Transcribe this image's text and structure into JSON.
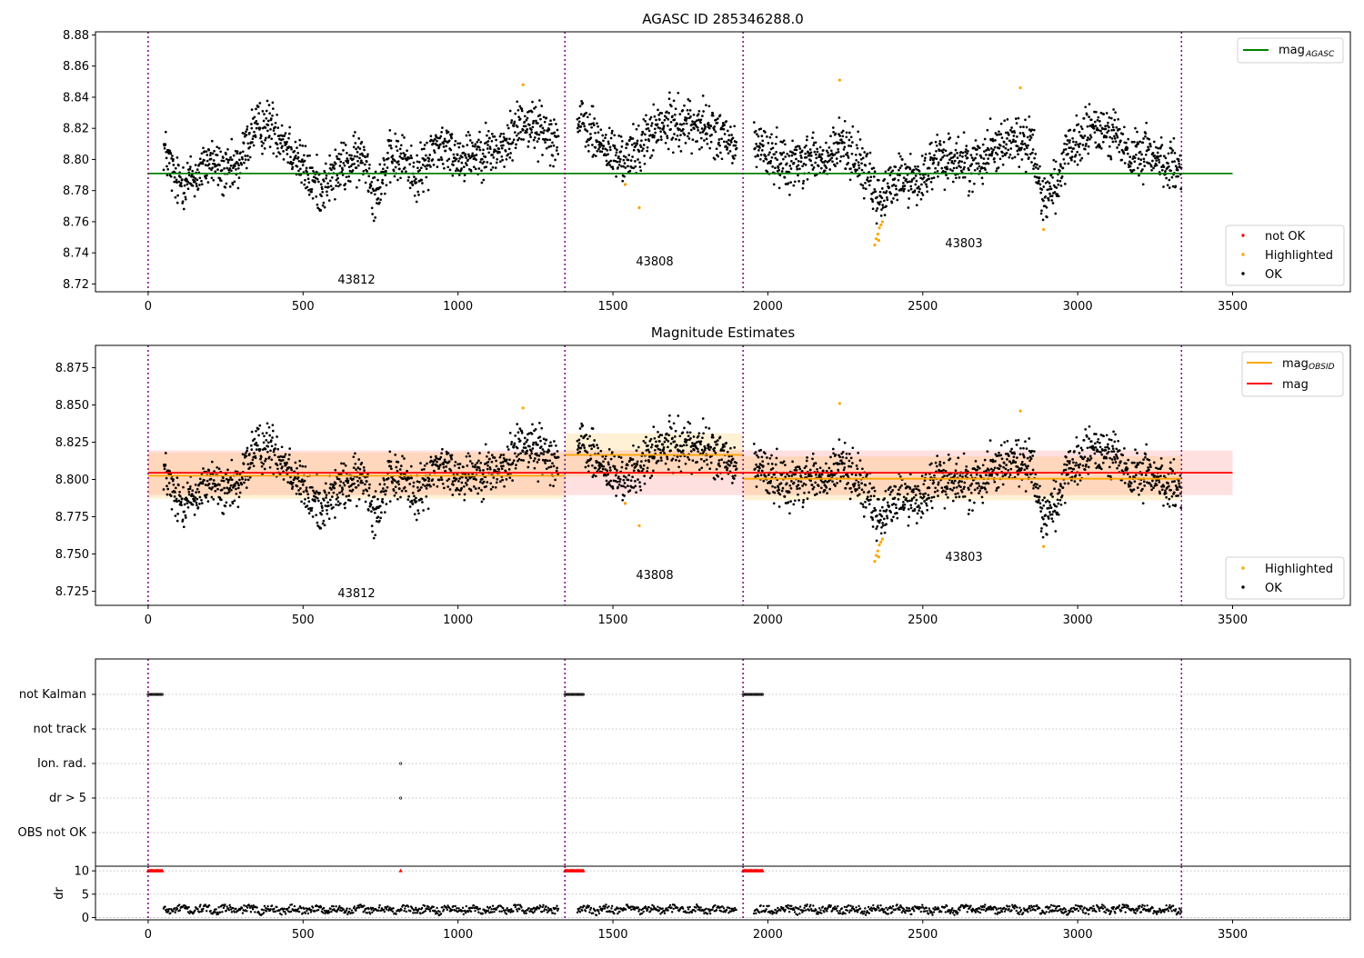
{
  "chart_data": [
    {
      "type": "scatter",
      "title": "AGASC ID 285346288.0",
      "xlim": [
        -170,
        3880
      ],
      "ylim": [
        8.715,
        8.882
      ],
      "xticks": [
        0,
        500,
        1000,
        1500,
        2000,
        2500,
        3000,
        3500
      ],
      "xtick_labels": [
        "0",
        "500",
        "1000",
        "1500",
        "2000",
        "2500",
        "3000",
        "3500"
      ],
      "yticks": [
        8.72,
        8.74,
        8.76,
        8.78,
        8.8,
        8.82,
        8.84,
        8.86,
        8.88
      ],
      "ytick_labels": [
        "8.72",
        "8.74",
        "8.76",
        "8.78",
        "8.80",
        "8.82",
        "8.84",
        "8.86",
        "8.88"
      ],
      "obsid_boundaries": [
        0,
        1345,
        1920,
        3335
      ],
      "obsid_labels": [
        {
          "text": "43812",
          "x": 670,
          "y": 8.722
        },
        {
          "text": "43808",
          "x": 1630,
          "y": 8.734
        },
        {
          "text": "43803",
          "x": 2615,
          "y": 8.746
        }
      ],
      "mag_agasc": {
        "value": 8.791,
        "x_range": [
          0,
          3500
        ],
        "color": "#008000"
      },
      "legend_lines": {
        "location": "top-right",
        "entries": [
          {
            "label": "mag",
            "sub": "AGASC",
            "color": "#008000"
          }
        ]
      },
      "legend_points": {
        "location": "lower-right",
        "entries": [
          {
            "label": "not OK",
            "color": "#ff0000"
          },
          {
            "label": "Highlighted",
            "color": "#ffa500"
          },
          {
            "label": "OK",
            "color": "#000000"
          }
        ]
      },
      "highlighted_points": [
        [
          1210,
          8.848
        ],
        [
          1540,
          8.784
        ],
        [
          1585,
          8.769
        ],
        [
          2345,
          8.745
        ],
        [
          2350,
          8.749
        ],
        [
          2355,
          8.752
        ],
        [
          2360,
          8.756
        ],
        [
          2365,
          8.758
        ],
        [
          2370,
          8.76
        ],
        [
          2358,
          8.748
        ],
        [
          2232,
          8.851
        ],
        [
          2815,
          8.846
        ],
        [
          2890,
          8.755
        ]
      ]
    },
    {
      "type": "scatter",
      "title": "Magnitude Estimates",
      "xlim": [
        -170,
        3880
      ],
      "ylim": [
        8.7155,
        8.89
      ],
      "xticks": [
        0,
        500,
        1000,
        1500,
        2000,
        2500,
        3000,
        3500
      ],
      "xtick_labels": [
        "0",
        "500",
        "1000",
        "1500",
        "2000",
        "2500",
        "3000",
        "3500"
      ],
      "yticks": [
        8.725,
        8.75,
        8.775,
        8.8,
        8.825,
        8.85,
        8.875
      ],
      "ytick_labels": [
        "8.725",
        "8.750",
        "8.775",
        "8.800",
        "8.825",
        "8.850",
        "8.875"
      ],
      "obsid_boundaries": [
        0,
        1345,
        1920,
        3335
      ],
      "obsid_labels": [
        {
          "text": "43812",
          "x": 670,
          "y": 8.7215
        },
        {
          "text": "43808",
          "x": 1630,
          "y": 8.7345
        },
        {
          "text": "43803",
          "x": 2615,
          "y": 8.7465
        }
      ],
      "mag": {
        "value": 8.8045,
        "band": [
          8.7895,
          8.8195
        ],
        "x_range": [
          0,
          3500
        ],
        "color": "#ff0000"
      },
      "mag_obsid": [
        {
          "obsid": "43812",
          "x_range": [
            0,
            1345
          ],
          "value": 8.8025,
          "band": [
            8.787,
            8.818
          ]
        },
        {
          "obsid": "43808",
          "x_range": [
            1345,
            1920
          ],
          "value": 8.8165,
          "band": [
            8.802,
            8.831
          ]
        },
        {
          "obsid": "43803",
          "x_range": [
            1920,
            3335
          ],
          "value": 8.8005,
          "band": [
            8.786,
            8.8155
          ]
        }
      ],
      "mag_obsid_color": "#ffa500",
      "legend_lines": {
        "location": "top-right",
        "entries": [
          {
            "label": "mag",
            "sub": "OBSID",
            "color": "#ffa500"
          },
          {
            "label": "mag",
            "sub": "",
            "color": "#ff0000"
          }
        ]
      },
      "legend_points": {
        "location": "lower-right",
        "entries": [
          {
            "label": "Highlighted",
            "color": "#ffa500"
          },
          {
            "label": "OK",
            "color": "#000000"
          }
        ]
      }
    },
    {
      "type": "scatter",
      "title": "",
      "xlim": [
        -170,
        3880
      ],
      "xticks": [
        0,
        500,
        1000,
        1500,
        2000,
        2500,
        3000,
        3500
      ],
      "xtick_labels": [
        "0",
        "500",
        "1000",
        "1500",
        "2000",
        "2500",
        "3000",
        "3500"
      ],
      "flag_rows": [
        "not Kalman",
        "not track",
        "Ion. rad.",
        "dr > 5",
        "OBS not OK"
      ],
      "flag_points": {
        "not Kalman": [
          [
            0,
            48
          ],
          [
            1345,
            1405
          ],
          [
            1920,
            1985
          ]
        ],
        "not track": [],
        "Ion. rad.": [
          [
            815,
            815
          ]
        ],
        "dr > 5": [
          [
            815,
            815
          ]
        ],
        "OBS not OK": []
      },
      "dr_ylabel": "dr",
      "dr_ylim": [
        -0.5,
        11
      ],
      "dr_yticks": [
        0,
        5,
        10
      ],
      "dr_ytick_labels": [
        "0",
        "5",
        "10"
      ],
      "dr_capped": [
        [
          0,
          48
        ],
        [
          815,
          815
        ],
        [
          1345,
          1405
        ],
        [
          1920,
          1985
        ]
      ],
      "obsid_boundaries": [
        0,
        1345,
        1920,
        3335
      ]
    }
  ],
  "colors": {
    "ok": "#000000",
    "highlighted": "#ffa500",
    "not_ok": "#ff0000",
    "boundary": "#800080"
  }
}
